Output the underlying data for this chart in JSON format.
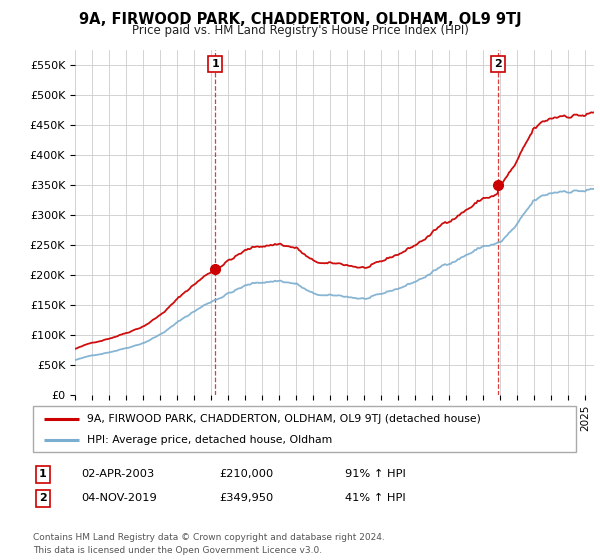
{
  "title": "9A, FIRWOOD PARK, CHADDERTON, OLDHAM, OL9 9TJ",
  "subtitle": "Price paid vs. HM Land Registry's House Price Index (HPI)",
  "ylim": [
    0,
    575000
  ],
  "yticks": [
    0,
    50000,
    100000,
    150000,
    200000,
    250000,
    300000,
    350000,
    400000,
    450000,
    500000,
    550000
  ],
  "ytick_labels": [
    "£0",
    "£50K",
    "£100K",
    "£150K",
    "£200K",
    "£250K",
    "£300K",
    "£350K",
    "£400K",
    "£450K",
    "£500K",
    "£550K"
  ],
  "sale1_date": 2003.25,
  "sale1_price": 210000,
  "sale1_label": "1",
  "sale2_date": 2019.84,
  "sale2_price": 349950,
  "sale2_label": "2",
  "red_line_color": "#cc0000",
  "blue_line_color": "#7aadcf",
  "sale_dot_color": "#cc0000",
  "vline_color": "#cc0000",
  "grid_color": "#cccccc",
  "background_color": "#ffffff",
  "legend_line1": "9A, FIRWOOD PARK, CHADDERTON, OLDHAM, OL9 9TJ (detached house)",
  "legend_line2": "HPI: Average price, detached house, Oldham",
  "footer": "Contains HM Land Registry data © Crown copyright and database right 2024.\nThis data is licensed under the Open Government Licence v3.0.",
  "xstart": 1995.0,
  "xend": 2025.5,
  "hpi_years": [
    1995,
    1996,
    1997,
    1998,
    1999,
    2000,
    2001,
    2002,
    2003,
    2004,
    2005,
    2006,
    2007,
    2008,
    2009,
    2010,
    2011,
    2012,
    2013,
    2014,
    2015,
    2016,
    2017,
    2018,
    2019,
    2020,
    2021,
    2022,
    2023,
    2024,
    2025.5
  ],
  "hpi_vals": [
    58000,
    65000,
    72000,
    80000,
    90000,
    105000,
    125000,
    145000,
    162000,
    178000,
    190000,
    196000,
    200000,
    195000,
    175000,
    170000,
    168000,
    165000,
    168000,
    178000,
    190000,
    205000,
    222000,
    238000,
    252000,
    258000,
    285000,
    320000,
    330000,
    338000,
    340000
  ]
}
